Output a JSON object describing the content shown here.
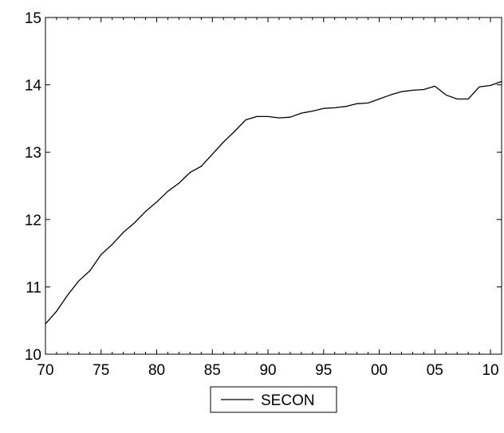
{
  "chart_data": {
    "type": "line",
    "title": "",
    "xlabel": "",
    "ylabel": "",
    "xlim": [
      1970,
      2011
    ],
    "ylim": [
      10,
      15
    ],
    "x_ticks": [
      {
        "value": 1970,
        "label": "70"
      },
      {
        "value": 1975,
        "label": "75"
      },
      {
        "value": 1980,
        "label": "80"
      },
      {
        "value": 1985,
        "label": "85"
      },
      {
        "value": 1990,
        "label": "90"
      },
      {
        "value": 1995,
        "label": "95"
      },
      {
        "value": 2000,
        "label": "00"
      },
      {
        "value": 2005,
        "label": "05"
      },
      {
        "value": 2010,
        "label": "10"
      }
    ],
    "y_ticks": [
      {
        "value": 10,
        "label": "10"
      },
      {
        "value": 11,
        "label": "11"
      },
      {
        "value": 12,
        "label": "12"
      },
      {
        "value": 13,
        "label": "13"
      },
      {
        "value": 14,
        "label": "14"
      },
      {
        "value": 15,
        "label": "15"
      }
    ],
    "grid": false,
    "legend": "bottom-center",
    "series": [
      {
        "name": "SECON",
        "color": "#000000",
        "x": [
          1970,
          1971,
          1972,
          1973,
          1974,
          1975,
          1976,
          1977,
          1978,
          1979,
          1980,
          1981,
          1982,
          1983,
          1984,
          1985,
          1986,
          1987,
          1988,
          1989,
          1990,
          1991,
          1992,
          1993,
          1994,
          1995,
          1996,
          1997,
          1998,
          1999,
          2000,
          2001,
          2002,
          2003,
          2004,
          2005,
          2006,
          2007,
          2008,
          2009,
          2010,
          2011
        ],
        "values": [
          10.45,
          10.64,
          10.88,
          11.09,
          11.24,
          11.48,
          11.63,
          11.81,
          11.95,
          12.12,
          12.26,
          12.42,
          12.54,
          12.7,
          12.79,
          12.97,
          13.15,
          13.31,
          13.48,
          13.53,
          13.53,
          13.51,
          13.52,
          13.58,
          13.61,
          13.65,
          13.66,
          13.68,
          13.72,
          13.73,
          13.79,
          13.85,
          13.9,
          13.92,
          13.93,
          13.98,
          13.85,
          13.79,
          13.79,
          13.97,
          13.99,
          14.05
        ]
      }
    ]
  }
}
